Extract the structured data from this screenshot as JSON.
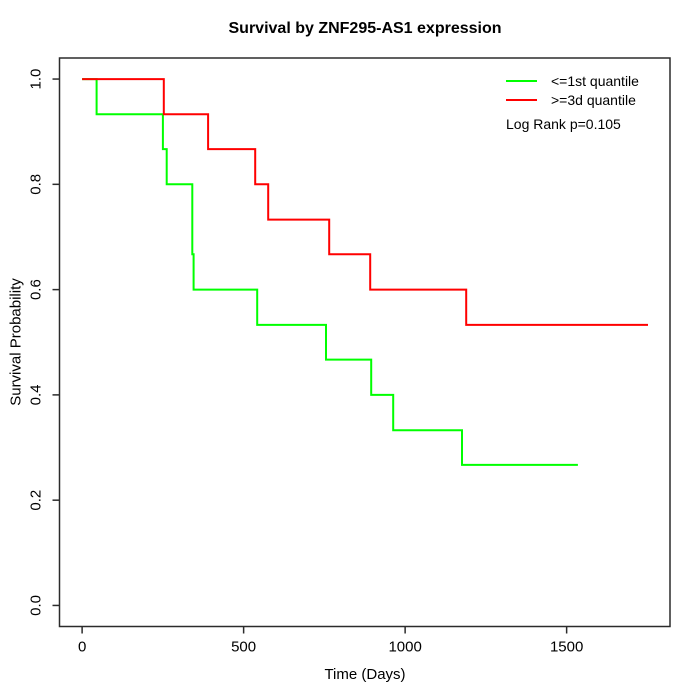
{
  "chart_data": {
    "type": "line",
    "subtype": "kaplan-meier-step",
    "title": "Survival by ZNF295-AS1 expression",
    "xlabel": "Time (Days)",
    "ylabel": "Survival Probability",
    "xlim": [
      0,
      1750
    ],
    "ylim": [
      0,
      1
    ],
    "x_ticks": [
      0,
      500,
      1000,
      1500
    ],
    "y_ticks": [
      0.0,
      0.2,
      0.4,
      0.6,
      0.8,
      1.0
    ],
    "grid": false,
    "legend_position": "top-right",
    "annotation": "Log Rank p=0.105",
    "axis_color": "#2b2b2b",
    "text_color": "#000000",
    "series": [
      {
        "name": "<=1st quantile",
        "color": "#00ff00",
        "end_time": 1535,
        "steps": [
          [
            0,
            1.0
          ],
          [
            45,
            0.933
          ],
          [
            250,
            0.867
          ],
          [
            262,
            0.8
          ],
          [
            341,
            0.667
          ],
          [
            345,
            0.6
          ],
          [
            542,
            0.533
          ],
          [
            755,
            0.467
          ],
          [
            895,
            0.4
          ],
          [
            963,
            0.333
          ],
          [
            1176,
            0.267
          ]
        ]
      },
      {
        "name": ">=3d quantile",
        "color": "#ff0000",
        "end_time": 1752,
        "steps": [
          [
            0,
            1.0
          ],
          [
            253,
            0.933
          ],
          [
            390,
            0.867
          ],
          [
            536,
            0.8
          ],
          [
            576,
            0.733
          ],
          [
            765,
            0.667
          ],
          [
            892,
            0.6
          ],
          [
            1189,
            0.533
          ]
        ]
      }
    ]
  }
}
